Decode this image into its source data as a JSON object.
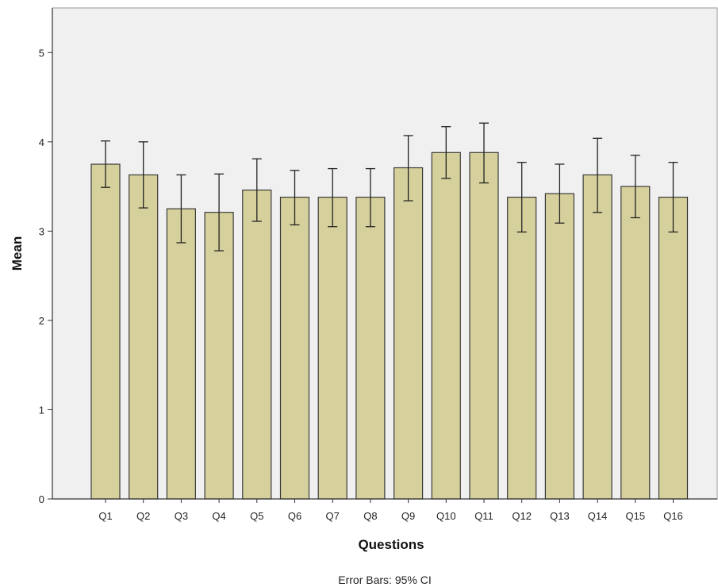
{
  "chart_data": {
    "type": "bar",
    "categories": [
      "Q1",
      "Q2",
      "Q3",
      "Q4",
      "Q5",
      "Q6",
      "Q7",
      "Q8",
      "Q9",
      "Q10",
      "Q11",
      "Q12",
      "Q13",
      "Q14",
      "Q15",
      "Q16"
    ],
    "values": [
      3.75,
      3.63,
      3.25,
      3.21,
      3.46,
      3.38,
      3.38,
      3.38,
      3.71,
      3.88,
      3.88,
      3.38,
      3.42,
      3.63,
      3.5,
      3.38
    ],
    "error_low": [
      3.49,
      3.26,
      2.87,
      2.78,
      3.11,
      3.07,
      3.05,
      3.05,
      3.34,
      3.59,
      3.54,
      2.99,
      3.09,
      3.21,
      3.15,
      2.99
    ],
    "error_high": [
      4.01,
      4.0,
      3.63,
      3.64,
      3.81,
      3.68,
      3.7,
      3.7,
      4.07,
      4.17,
      4.21,
      3.77,
      3.75,
      4.04,
      3.85,
      3.77
    ],
    "xlabel": "Questions",
    "ylabel": "Mean",
    "ylim": [
      0,
      5.5
    ],
    "yticks": [
      "0",
      "1",
      "2",
      "3",
      "4",
      "5"
    ],
    "footnote": "Error Bars: 95% CI",
    "grid": false,
    "colors": {
      "bar_fill": "#d6d19c",
      "bar_stroke": "#3a3a3a",
      "plot_background": "#f0f0f0",
      "error_bar": "#222222"
    }
  }
}
